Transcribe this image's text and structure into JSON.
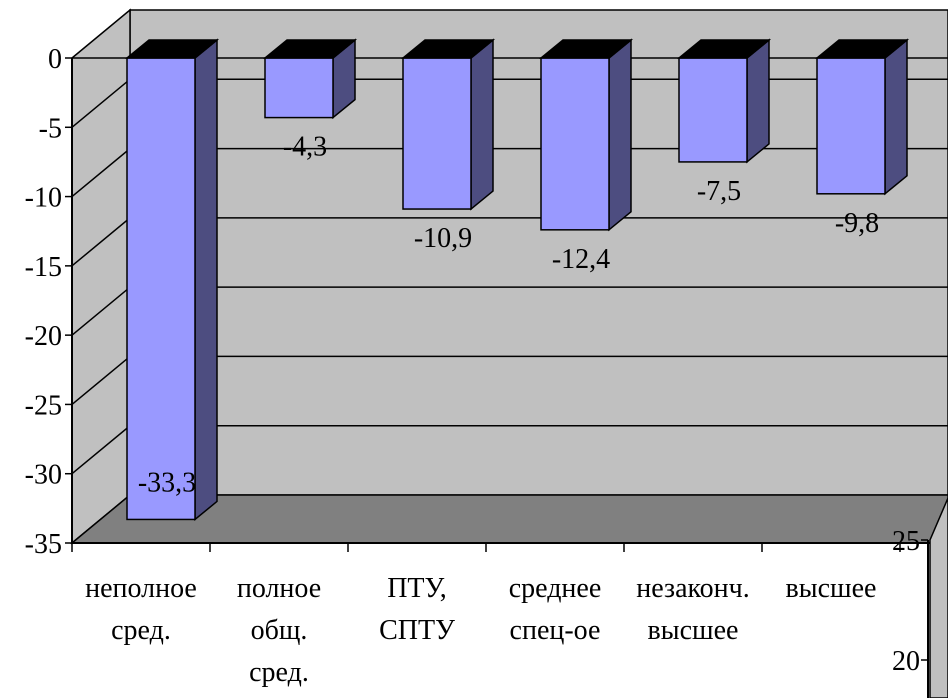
{
  "chart_data": [
    {
      "type": "bar",
      "categories": [
        [
          "неполное",
          "сред."
        ],
        [
          "полное",
          "общ.",
          "сред."
        ],
        [
          "ПТУ,",
          "СПТУ"
        ],
        [
          "среднее",
          "спец-ое"
        ],
        [
          "незаконч.",
          "высшее"
        ],
        [
          "высшее"
        ]
      ],
      "values": [
        -33.3,
        -4.3,
        -10.9,
        -12.4,
        -7.5,
        -9.8
      ],
      "data_labels": [
        "-33,3",
        "-4,3",
        "-10,9",
        "-12,4",
        "-7,5",
        "-9,8"
      ],
      "ylim": [
        -35,
        0
      ],
      "yticks": [
        0,
        -5,
        -10,
        -15,
        -20,
        -25,
        -30,
        -35
      ],
      "ytick_labels": [
        "0",
        "-5",
        "-10",
        "-15",
        "-20",
        "-25",
        "-30",
        "-35"
      ],
      "grid": true,
      "colors": {
        "bar_front": "#9999ff",
        "bar_side": "#4d4d80",
        "bar_top": "#000000",
        "wall": "#c0c0c0",
        "floor": "#808080"
      }
    },
    {
      "type": "bar",
      "partial": true,
      "ytick_labels": [
        "25",
        "20"
      ]
    }
  ]
}
